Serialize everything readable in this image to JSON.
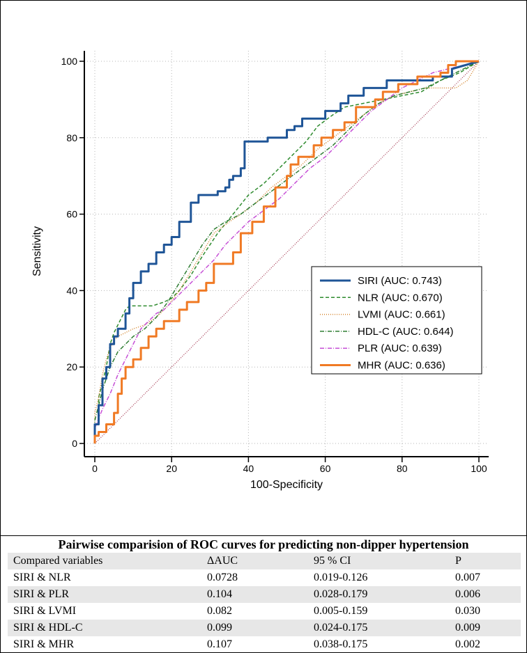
{
  "chart_data": {
    "type": "line",
    "title": "",
    "xlabel": "100-Specificity",
    "ylabel": "Sensitivity",
    "xlim": [
      0,
      100
    ],
    "ylim": [
      0,
      100
    ],
    "x_ticks": [
      "0",
      "20",
      "40",
      "60",
      "80",
      "100"
    ],
    "y_ticks": [
      "0",
      "20",
      "40",
      "60",
      "80",
      "100"
    ],
    "grid": true,
    "legend_position": "center-right",
    "reference_line": {
      "from": [
        0,
        0
      ],
      "to": [
        100,
        100
      ],
      "color": "#a0304a",
      "style": "dotted"
    },
    "series": [
      {
        "name": "SIRI (AUC: 0.743)",
        "color": "#1f5597",
        "style": "solid-thick",
        "x": [
          0,
          0,
          1,
          1,
          2,
          2,
          3,
          3,
          4,
          4,
          5,
          5,
          6,
          6,
          8,
          8,
          9,
          9,
          10,
          10,
          12,
          12,
          14,
          14,
          16,
          16,
          18,
          18,
          20,
          20,
          22,
          22,
          25,
          25,
          27,
          27,
          32,
          32,
          34,
          34,
          35,
          35,
          36,
          36,
          38,
          38,
          39,
          39,
          45,
          45,
          50,
          50,
          52,
          52,
          54,
          54,
          60,
          60,
          64,
          64,
          66,
          66,
          70,
          70,
          76,
          76,
          88,
          88,
          93,
          93,
          100
        ],
        "y": [
          0,
          5,
          5,
          10,
          10,
          17,
          17,
          20,
          20,
          26,
          26,
          28,
          28,
          30,
          30,
          34,
          34,
          38,
          38,
          42,
          42,
          45,
          45,
          47,
          47,
          50,
          50,
          52,
          52,
          54,
          54,
          58,
          58,
          63,
          63,
          65,
          65,
          66,
          66,
          67,
          67,
          69,
          69,
          70,
          70,
          72,
          72,
          79,
          79,
          80,
          80,
          82,
          82,
          83,
          83,
          85,
          85,
          87,
          87,
          89,
          89,
          91,
          91,
          93,
          93,
          95,
          95,
          96,
          96,
          98,
          100
        ]
      },
      {
        "name": "NLR (AUC: 0.670)",
        "color": "#2e8b2e",
        "style": "dashed",
        "x": [
          0,
          0,
          1,
          1,
          3,
          4,
          5,
          6,
          7,
          8,
          9,
          12,
          15,
          18,
          20,
          22,
          25,
          28,
          32,
          36,
          40,
          44,
          48,
          52,
          55,
          58,
          62,
          65,
          70,
          75,
          80,
          85,
          90,
          95,
          100
        ],
        "y": [
          0,
          5,
          5,
          12,
          20,
          26,
          29,
          31,
          33,
          35,
          36,
          36,
          36,
          37,
          38,
          40,
          44,
          49,
          55,
          60,
          65,
          68,
          72,
          76,
          79,
          83,
          86,
          88,
          89,
          90,
          91,
          92,
          95,
          97,
          100
        ]
      },
      {
        "name": "LVMI (AUC: 0.661)",
        "color": "#d4842c",
        "style": "dotted",
        "x": [
          0,
          0,
          1,
          2,
          3,
          4,
          5,
          6,
          8,
          10,
          13,
          16,
          19,
          22,
          25,
          28,
          31,
          35,
          38,
          42,
          46,
          50,
          54,
          58,
          62,
          66,
          70,
          74,
          78,
          82,
          86,
          88,
          91,
          94,
          97,
          100
        ],
        "y": [
          0,
          8,
          12,
          18,
          22,
          25,
          27,
          28,
          29,
          30,
          31,
          33,
          36,
          40,
          45,
          50,
          55,
          58,
          60,
          63,
          67,
          70,
          73,
          77,
          80,
          83,
          86,
          89,
          91,
          92,
          93,
          93,
          93,
          93,
          95,
          100
        ]
      },
      {
        "name": "HDL-C (AUC: 0.644)",
        "color": "#2e7d32",
        "style": "dashdot",
        "x": [
          0,
          0,
          2,
          4,
          6,
          8,
          10,
          13,
          16,
          19,
          22,
          25,
          28,
          31,
          34,
          38,
          42,
          46,
          50,
          54,
          58,
          62,
          66,
          70,
          74,
          78,
          82,
          86,
          90,
          94,
          100
        ],
        "y": [
          0,
          6,
          14,
          20,
          24,
          26,
          28,
          30,
          33,
          37,
          42,
          47,
          52,
          56,
          58,
          60,
          63,
          66,
          69,
          72,
          75,
          78,
          82,
          86,
          89,
          91,
          92,
          93,
          95,
          97,
          100
        ]
      },
      {
        "name": "PLR (AUC: 0.639)",
        "color": "#c64fd6",
        "style": "dashdot",
        "x": [
          0,
          0,
          2,
          4,
          6,
          8,
          10,
          12,
          14,
          16,
          18,
          20,
          22,
          25,
          28,
          31,
          34,
          37,
          40,
          44,
          48,
          52,
          56,
          60,
          64,
          68,
          72,
          76,
          80,
          84,
          88,
          92,
          96,
          100
        ],
        "y": [
          0,
          4,
          9,
          13,
          18,
          22,
          26,
          30,
          32,
          34,
          35,
          37,
          39,
          42,
          45,
          48,
          52,
          55,
          58,
          61,
          64,
          68,
          72,
          75,
          79,
          83,
          87,
          90,
          93,
          95,
          97,
          98,
          99,
          100
        ]
      },
      {
        "name": "MHR (AUC: 0.636)",
        "color": "#f07a24",
        "style": "solid-thick",
        "x": [
          0,
          0,
          1,
          1,
          3,
          3,
          5,
          5,
          6,
          6,
          7,
          7,
          8,
          8,
          10,
          10,
          12,
          12,
          14,
          14,
          16,
          16,
          18,
          18,
          22,
          22,
          24,
          24,
          27,
          27,
          29,
          29,
          31,
          31,
          36,
          36,
          38,
          38,
          41,
          41,
          44,
          44,
          47,
          47,
          50,
          50,
          51,
          51,
          53,
          53,
          57,
          57,
          59,
          59,
          62,
          62,
          65,
          65,
          68,
          68,
          73,
          73,
          75,
          75,
          79,
          79,
          84,
          84,
          90,
          90,
          92,
          92,
          94,
          94,
          100
        ],
        "y": [
          0,
          2,
          2,
          3,
          3,
          5,
          5,
          8,
          8,
          13,
          13,
          17,
          17,
          20,
          20,
          22,
          22,
          25,
          25,
          28,
          28,
          30,
          30,
          32,
          32,
          35,
          35,
          37,
          37,
          40,
          40,
          42,
          42,
          47,
          47,
          50,
          50,
          55,
          55,
          58,
          58,
          62,
          62,
          67,
          67,
          70,
          70,
          73,
          73,
          75,
          75,
          78,
          78,
          80,
          80,
          82,
          82,
          84,
          84,
          88,
          88,
          90,
          90,
          92,
          92,
          94,
          94,
          96,
          96,
          97,
          97,
          99,
          99,
          100,
          100
        ]
      }
    ]
  },
  "table": {
    "title": "Pairwise comparision of ROC curves for predicting non-dipper hypertension",
    "headers": [
      "Compared variables",
      "ΔAUC",
      "95 % CI",
      "P"
    ],
    "rows": [
      [
        "SIRI & NLR",
        "0.0728",
        "0.019-0.126",
        "0.007"
      ],
      [
        "SIRI & PLR",
        "0.104",
        "0.028-0.179",
        "0.006"
      ],
      [
        "SIRI & LVMI",
        "0.082",
        "0.005-0.159",
        "0.030"
      ],
      [
        "SIRI & HDL-C",
        "0.099",
        "0.024-0.175",
        "0.009"
      ],
      [
        "SIRI & MHR",
        "0.107",
        "0.038-0.175",
        "0.002"
      ]
    ]
  }
}
